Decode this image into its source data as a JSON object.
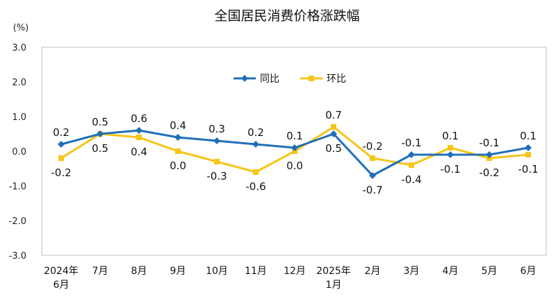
{
  "chart_data": {
    "type": "line",
    "title": "全国居民消费价格涨跌幅",
    "unit": "(%)",
    "categories": [
      [
        "2024年",
        "6月"
      ],
      [
        "7月"
      ],
      [
        "8月"
      ],
      [
        "9月"
      ],
      [
        "10月"
      ],
      [
        "11月"
      ],
      [
        "12月"
      ],
      [
        "2025年",
        "1月"
      ],
      [
        "2月"
      ],
      [
        "3月"
      ],
      [
        "4月"
      ],
      [
        "5月"
      ],
      [
        "6月"
      ]
    ],
    "ylim": [
      -3.0,
      3.0
    ],
    "yticks": [
      3.0,
      2.0,
      1.0,
      0.0,
      -1.0,
      -2.0,
      -3.0
    ],
    "ytick_labels": [
      "3.0",
      "2.0",
      "1.0",
      "0.0",
      "-1.0",
      "-2.0",
      "-3.0"
    ],
    "grid": false,
    "legend_position": "top-center",
    "series": [
      {
        "name": "同比",
        "color": "#1f6fb8",
        "marker": "diamond",
        "values": [
          0.2,
          0.5,
          0.6,
          0.4,
          0.3,
          0.2,
          0.1,
          0.5,
          -0.7,
          -0.1,
          -0.1,
          -0.1,
          0.1
        ],
        "labels": [
          "0.2",
          "0.5",
          "0.6",
          "0.4",
          "0.3",
          "0.2",
          "0.1",
          "0.5",
          "-0.7",
          "-0.1",
          "-0.1",
          "-0.1",
          "0.1"
        ],
        "label_side": [
          "above",
          "above",
          "above",
          "above",
          "above",
          "above",
          "above",
          "below",
          "below",
          "above",
          "below",
          "above",
          "above"
        ]
      },
      {
        "name": "环比",
        "color": "#f5c518",
        "marker": "square",
        "values": [
          -0.2,
          0.5,
          0.4,
          0.0,
          -0.3,
          -0.6,
          0.0,
          0.7,
          -0.2,
          -0.4,
          0.1,
          -0.2,
          -0.1
        ],
        "labels": [
          "-0.2",
          "0.5",
          "0.4",
          "0.0",
          "-0.3",
          "-0.6",
          "0.0",
          "0.7",
          "-0.2",
          "-0.4",
          "0.1",
          "-0.2",
          "-0.1"
        ],
        "label_side": [
          "below",
          "below",
          "below",
          "below",
          "below",
          "below",
          "below",
          "above",
          "above",
          "below",
          "above",
          "below",
          "below"
        ]
      }
    ]
  }
}
